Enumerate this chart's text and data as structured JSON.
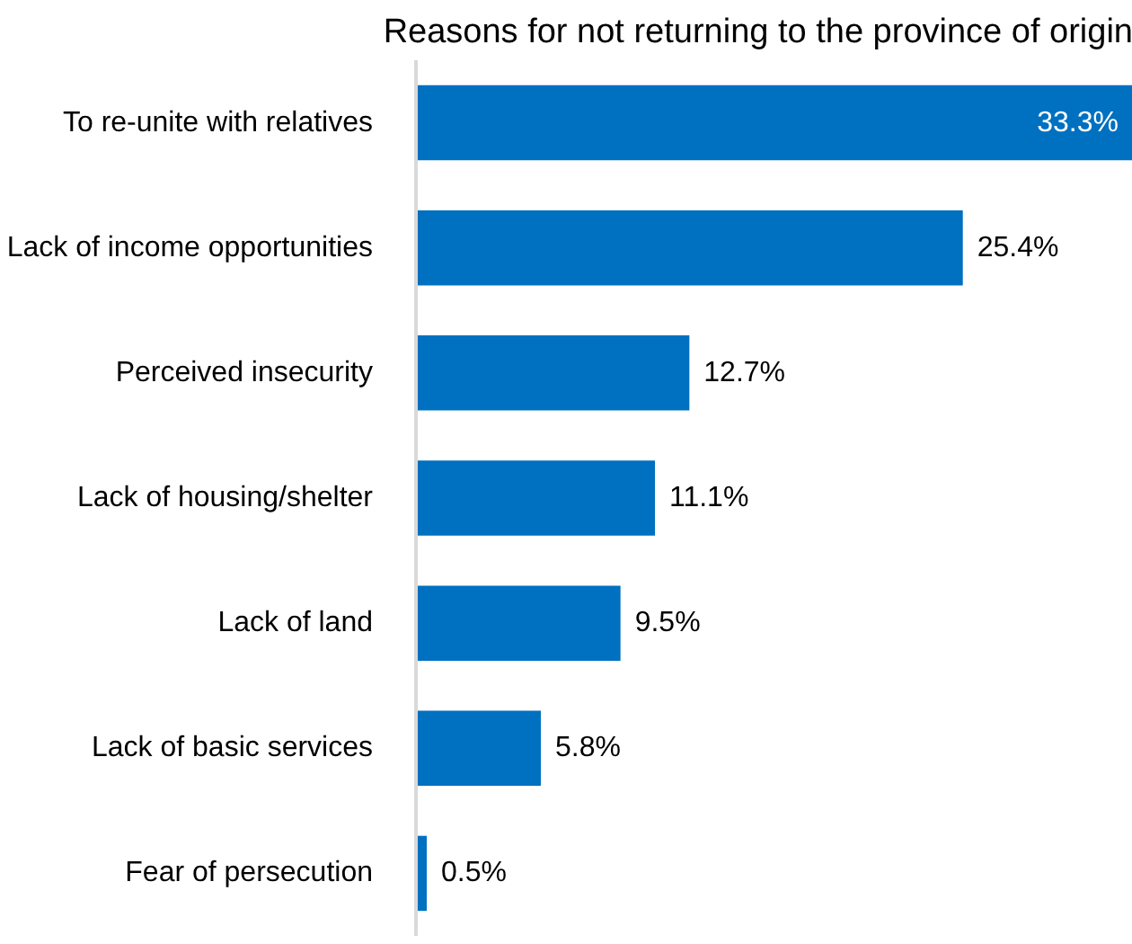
{
  "chart_data": {
    "type": "bar",
    "orientation": "horizontal",
    "title": "Reasons for not returning to the province of origin",
    "categories": [
      "To re-unite with relatives",
      "Lack of income opportunities",
      "Perceived insecurity",
      "Lack of housing/shelter",
      "Lack of land",
      "Lack of basic services",
      "Fear of persecution"
    ],
    "values": [
      33.3,
      25.4,
      12.7,
      11.1,
      9.5,
      5.8,
      0.5
    ],
    "value_labels": [
      "33.3%",
      "25.4%",
      "12.7%",
      "11.1%",
      "9.5%",
      "5.8%",
      "0.5%"
    ],
    "color": "#0070c0"
  }
}
